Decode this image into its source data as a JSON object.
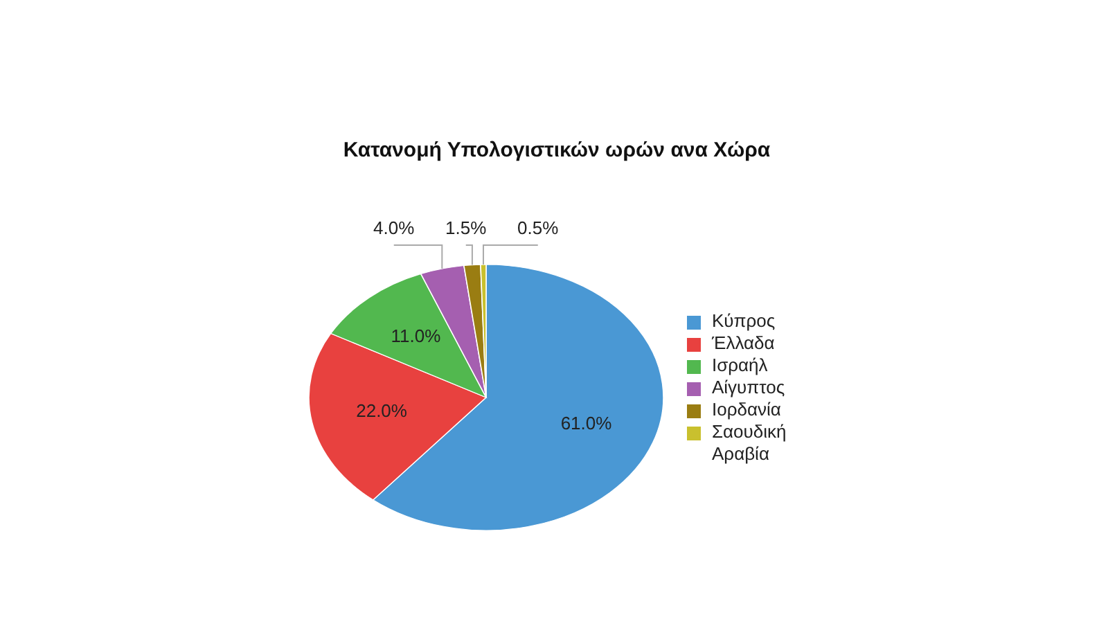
{
  "chart_data": {
    "type": "pie",
    "title": "Κατανομή Υπολογιστικών ωρών ανα Χώρα",
    "categories": [
      "Κύπρος",
      "Έλλαδα",
      "Ισραήλ",
      "Αίγυπτος",
      "Ιορδανία",
      "Σαουδική Αραβία"
    ],
    "values": [
      61.0,
      22.0,
      11.0,
      4.0,
      1.5,
      0.5
    ],
    "value_labels": [
      "61.0%",
      "22.0%",
      "11.0%",
      "4.0%",
      "1.5%",
      "0.5%"
    ],
    "colors": [
      "#4a98d4",
      "#e8413f",
      "#52b84f",
      "#a55fb0",
      "#9a7d12",
      "#c9c02e"
    ],
    "legend": "right"
  }
}
